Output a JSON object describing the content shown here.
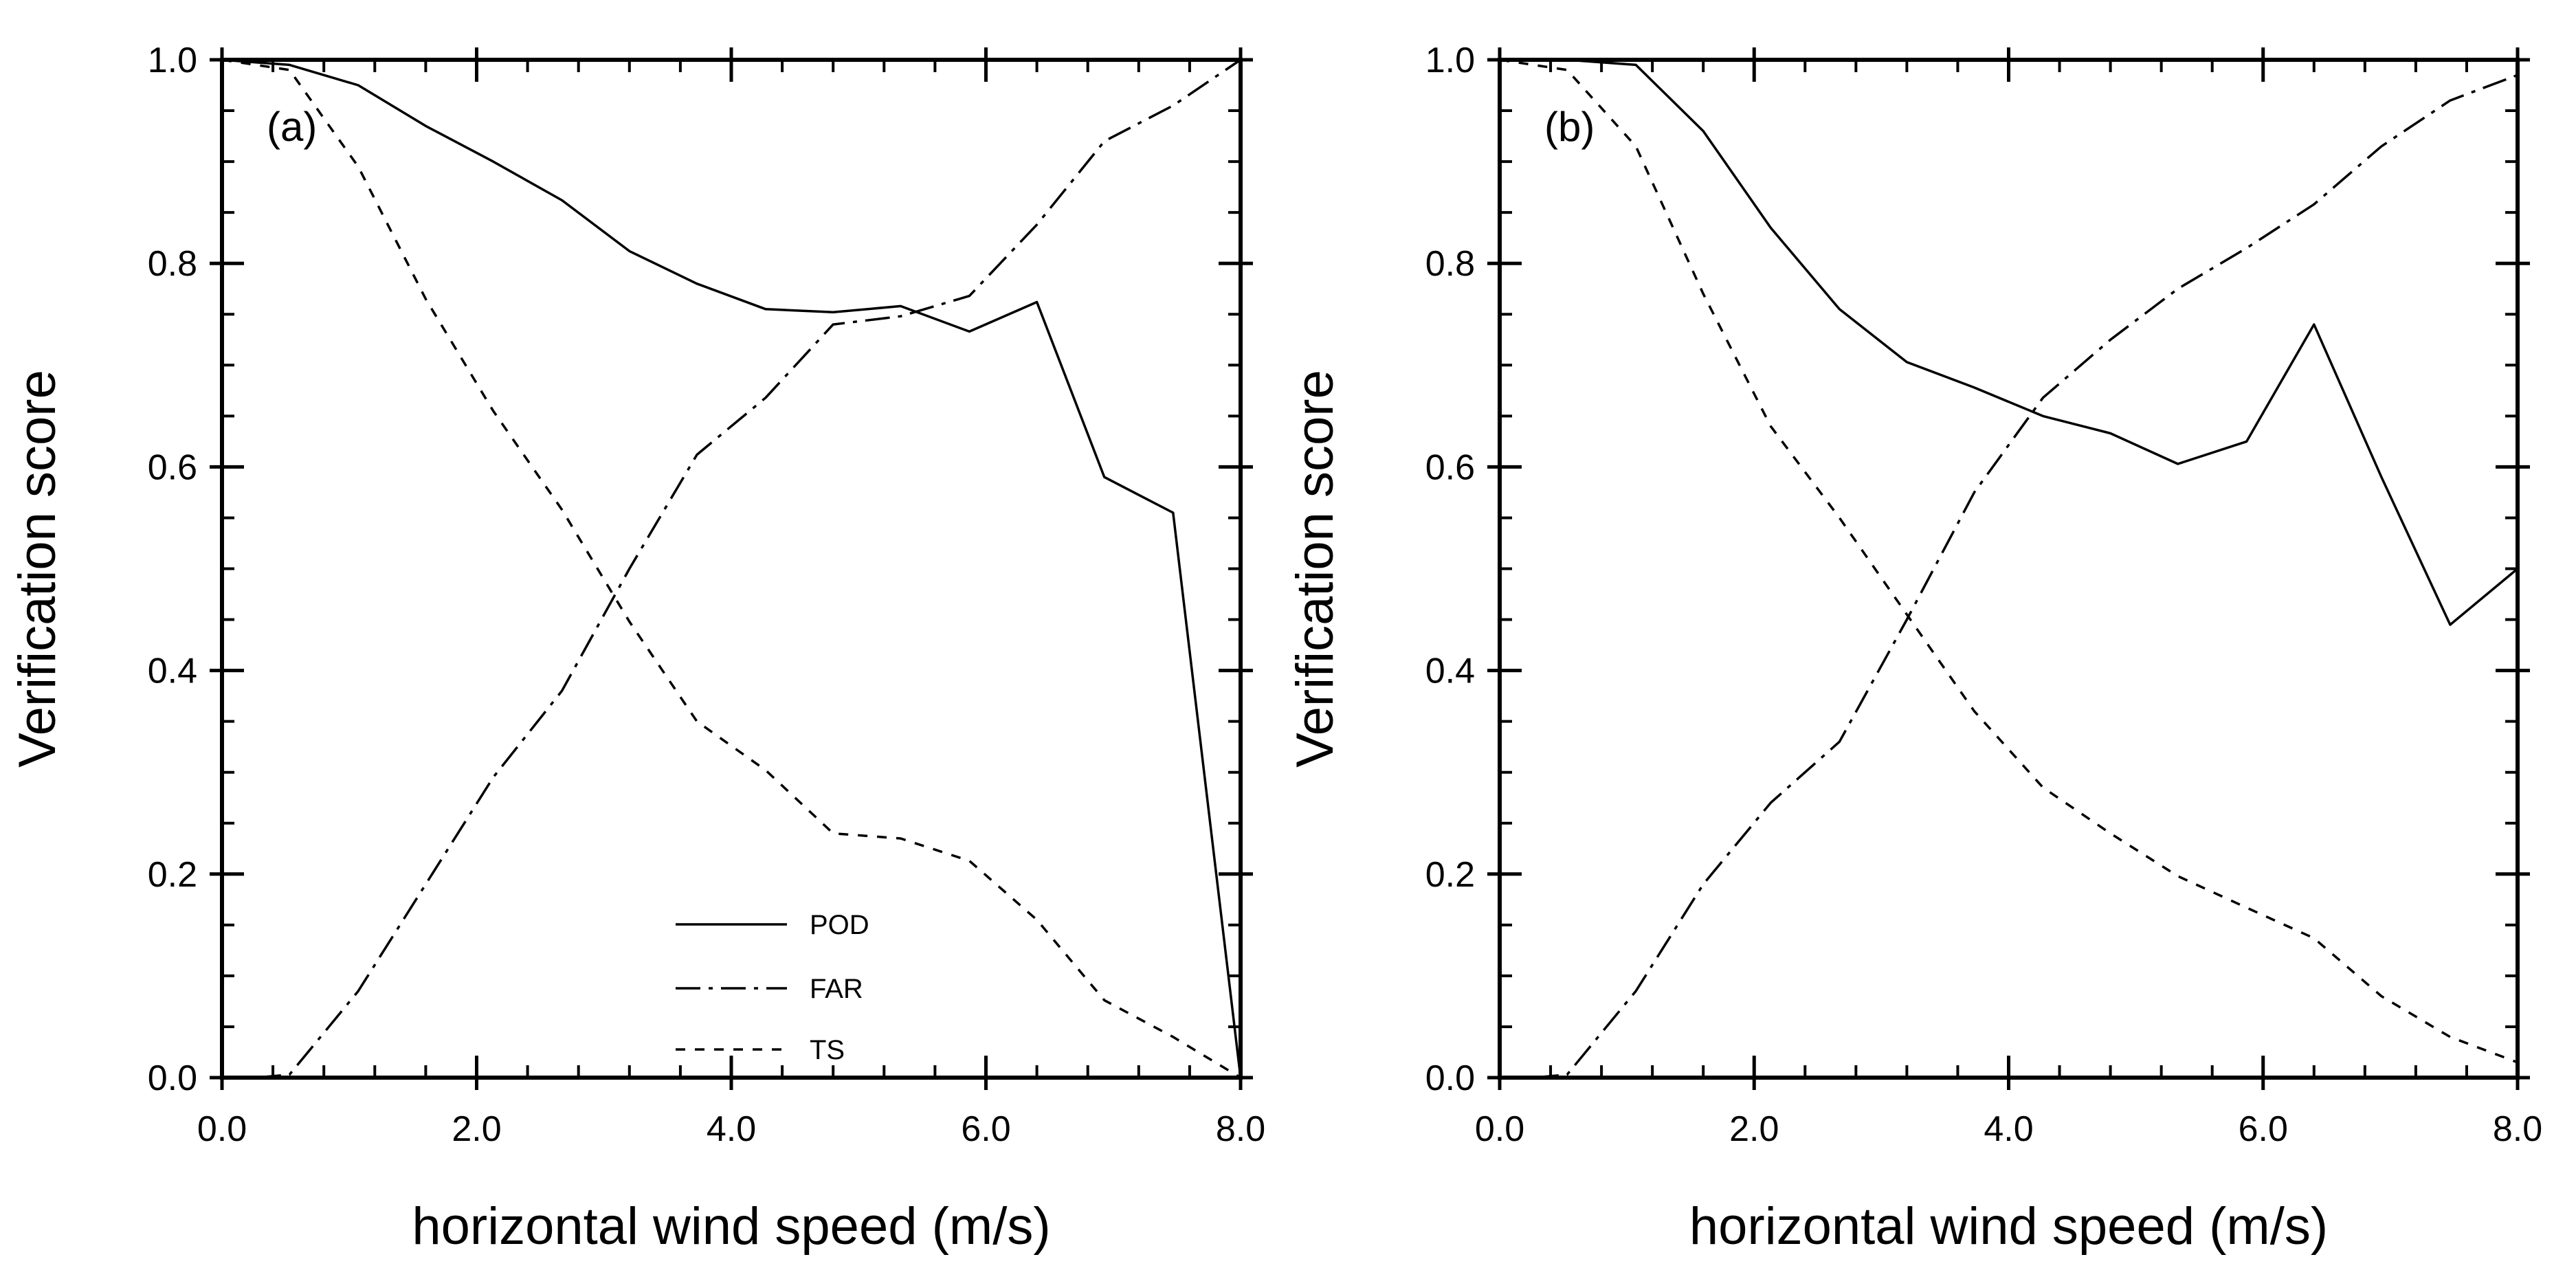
{
  "chart_data": [
    {
      "type": "line",
      "panel_label": "(a)",
      "xlabel": "horizontal wind speed (m/s)",
      "ylabel": "Verification score",
      "xlim": [
        0.0,
        8.0
      ],
      "ylim": [
        0.0,
        1.0
      ],
      "xticks": [
        "0.0",
        "2.0",
        "4.0",
        "6.0",
        "8.0"
      ],
      "yticks": [
        "0.0",
        "0.2",
        "0.4",
        "0.6",
        "0.8",
        "1.0"
      ],
      "legend": {
        "placement": "bottom-center",
        "entries": [
          "POD",
          "FAR",
          "TS"
        ]
      },
      "series": [
        {
          "name": "POD",
          "style": "solid",
          "x": [
            0.0,
            0.53,
            1.07,
            1.6,
            2.13,
            2.67,
            3.2,
            3.73,
            4.27,
            4.8,
            5.33,
            5.87,
            6.4,
            6.93,
            7.47,
            8.0
          ],
          "y": [
            1.0,
            0.995,
            0.975,
            0.935,
            0.9,
            0.862,
            0.812,
            0.78,
            0.755,
            0.752,
            0.758,
            0.733,
            0.762,
            0.59,
            0.555,
            0.0
          ]
        },
        {
          "name": "FAR",
          "style": "dash-dot",
          "x": [
            0.27,
            0.53,
            1.07,
            1.6,
            2.13,
            2.67,
            3.2,
            3.73,
            4.27,
            4.8,
            5.33,
            5.87,
            6.4,
            6.93,
            7.47,
            8.0
          ],
          "y": [
            0.0,
            0.003,
            0.085,
            0.19,
            0.295,
            0.38,
            0.5,
            0.612,
            0.668,
            0.74,
            0.748,
            0.768,
            0.838,
            0.92,
            0.955,
            1.0
          ]
        },
        {
          "name": "TS",
          "style": "dashed",
          "x": [
            0.0,
            0.53,
            1.07,
            1.6,
            2.13,
            2.67,
            3.2,
            3.73,
            4.27,
            4.8,
            5.33,
            5.87,
            6.4,
            6.93,
            7.47,
            8.0
          ],
          "y": [
            1.0,
            0.99,
            0.895,
            0.765,
            0.655,
            0.558,
            0.448,
            0.35,
            0.302,
            0.24,
            0.235,
            0.213,
            0.155,
            0.076,
            0.04,
            0.0
          ]
        }
      ]
    },
    {
      "type": "line",
      "panel_label": "(b)",
      "xlabel": "horizontal wind speed (m/s)",
      "ylabel": "Verification score",
      "xlim": [
        0.0,
        8.0
      ],
      "ylim": [
        0.0,
        1.0
      ],
      "xticks": [
        "0.0",
        "2.0",
        "4.0",
        "6.0",
        "8.0"
      ],
      "yticks": [
        "0.0",
        "0.2",
        "0.4",
        "0.6",
        "0.8",
        "1.0"
      ],
      "series": [
        {
          "name": "POD",
          "style": "solid",
          "x": [
            0.0,
            0.53,
            1.07,
            1.6,
            2.13,
            2.67,
            3.2,
            3.73,
            4.27,
            4.8,
            5.33,
            5.87,
            6.4,
            6.93,
            7.47,
            8.0
          ],
          "y": [
            1.0,
            1.0,
            0.995,
            0.93,
            0.835,
            0.755,
            0.703,
            0.678,
            0.65,
            0.633,
            0.603,
            0.625,
            0.74,
            0.59,
            0.445,
            0.5
          ]
        },
        {
          "name": "FAR",
          "style": "dash-dot",
          "x": [
            0.27,
            0.53,
            1.07,
            1.6,
            2.13,
            2.67,
            3.2,
            3.73,
            4.27,
            4.8,
            5.33,
            5.87,
            6.4,
            6.93,
            7.47,
            8.0
          ],
          "y": [
            0.0,
            0.003,
            0.085,
            0.19,
            0.27,
            0.33,
            0.45,
            0.575,
            0.668,
            0.725,
            0.775,
            0.815,
            0.858,
            0.915,
            0.96,
            0.985
          ]
        },
        {
          "name": "TS",
          "style": "dashed",
          "x": [
            0.0,
            0.53,
            1.07,
            1.6,
            2.13,
            2.67,
            3.2,
            3.73,
            4.27,
            4.8,
            5.33,
            5.87,
            6.4,
            6.93,
            7.47,
            8.0
          ],
          "y": [
            1.0,
            0.99,
            0.915,
            0.77,
            0.64,
            0.55,
            0.455,
            0.36,
            0.285,
            0.24,
            0.198,
            0.167,
            0.137,
            0.08,
            0.04,
            0.015
          ]
        }
      ]
    }
  ]
}
